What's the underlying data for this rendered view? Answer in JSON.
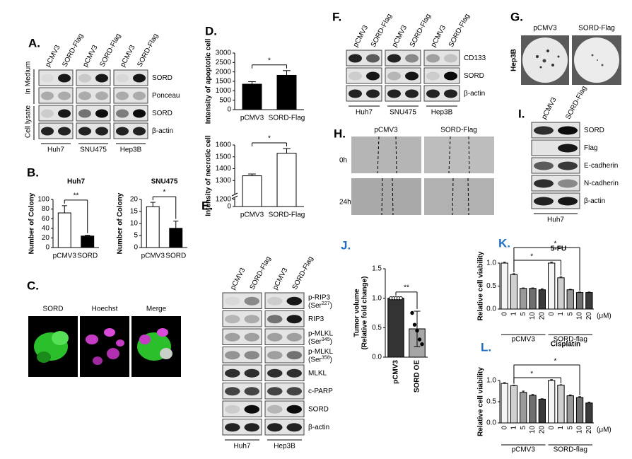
{
  "panel_labels": [
    "A.",
    "B.",
    "C.",
    "D.",
    "E.",
    "F.",
    "G.",
    "H.",
    "I.",
    "J.",
    "K.",
    "L."
  ],
  "blot_a": {
    "lanes": [
      "pCMV3",
      "SORD-Flag"
    ],
    "side_labels": [
      "In Medium",
      "Cell lysate"
    ],
    "rows": [
      "SORD",
      "Ponceau",
      "SORD",
      "β-actin"
    ],
    "cell_lines": [
      "Huh7",
      "SNU475",
      "Hep3B"
    ]
  },
  "panel_c": {
    "labels": [
      "SORD",
      "Hoechst",
      "Merge"
    ]
  },
  "blot_e": {
    "lanes": [
      "pCMV3",
      "SORD-Flag"
    ],
    "rows": [
      {
        "name": "p-RIP3",
        "site": [
          "(Ser",
          "227",
          ")"
        ]
      },
      {
        "name": "RIP3"
      },
      {
        "name": "p-MLKL",
        "site": [
          "(Ser",
          "345",
          ")"
        ]
      },
      {
        "name": "p-MLKL",
        "site": [
          "(Ser",
          "358",
          ")"
        ]
      },
      {
        "name": "MLKL"
      },
      {
        "name": "c-PARP"
      },
      {
        "name": "SORD"
      },
      {
        "name": "β-actin"
      }
    ],
    "cell_lines": [
      "Huh7",
      "Hep3B"
    ]
  },
  "blot_f": {
    "lanes": [
      "pCMV3",
      "SORD-Flag"
    ],
    "rows": [
      "CD133",
      "SORD",
      "β-actin"
    ],
    "cell_lines": [
      "Huh7",
      "SNU475",
      "Hep3B"
    ]
  },
  "panel_g": {
    "side_label": "Hep3B",
    "columns": [
      "pCMV3",
      "SORD-Flag"
    ]
  },
  "panel_h": {
    "columns": [
      "pCMV3",
      "SORD-Flag"
    ],
    "rows": [
      "0h",
      "24h"
    ]
  },
  "blot_i": {
    "lanes": [
      "pCMV3",
      "SORD-Flag"
    ],
    "rows": [
      "SORD",
      "Flag",
      "E-cadherin",
      "N-cadherin",
      "β-actin"
    ],
    "cell_line": "Huh7"
  },
  "chart_data": [
    {
      "type": "bar",
      "title": "Huh7",
      "y_label": "Number of Colony",
      "categories": [
        "pCMV3",
        "SORD"
      ],
      "values": [
        72,
        24
      ],
      "errors": [
        15,
        1.5
      ],
      "colors": [
        "#ffffff",
        "#000000"
      ],
      "ylim": [
        0,
        100
      ],
      "yticks": [
        0,
        20,
        40,
        60,
        80,
        100
      ],
      "significance": "**"
    },
    {
      "type": "bar",
      "title": "SNU475",
      "y_label": "Number of Colony",
      "categories": [
        "pCMV3",
        "SORD"
      ],
      "values": [
        17,
        8
      ],
      "errors": [
        1.8,
        3
      ],
      "colors": [
        "#ffffff",
        "#000000"
      ],
      "ylim": [
        0,
        20
      ],
      "yticks": [
        0,
        5,
        10,
        15,
        20
      ],
      "significance": "*"
    },
    {
      "type": "bar",
      "y_label": "Intensity of apoptotic cell",
      "categories": [
        "pCMV3",
        "SORD-Flag"
      ],
      "values": [
        1350,
        1820
      ],
      "errors": [
        130,
        250
      ],
      "colors": [
        "#000000",
        "#000000"
      ],
      "ylim": [
        0,
        3000
      ],
      "yticks": [
        0,
        500,
        1000,
        1500,
        2000,
        2500,
        3000
      ],
      "significance": "*"
    },
    {
      "type": "bar",
      "y_label": "Intensity of necrotic cell",
      "categories": [
        "pCMV3",
        "SORD-Flag"
      ],
      "values": [
        1340,
        1530
      ],
      "errors": [
        15,
        40
      ],
      "colors": [
        "#ffffff",
        "#ffffff"
      ],
      "ylim": [
        0,
        1600
      ],
      "y_break": [
        0,
        1200
      ],
      "yticks": [
        0,
        1200,
        1300,
        1400,
        1500,
        1600
      ],
      "significance": "*"
    },
    {
      "type": "bar",
      "y_label": [
        "Tumor volume",
        "(Relative fold change)"
      ],
      "categories": [
        "pCMV3",
        "SORD OE"
      ],
      "values": [
        1.0,
        0.48
      ],
      "errors": [
        0.01,
        0.3
      ],
      "colors": [
        "#333333",
        "#a6a6a6"
      ],
      "points": [
        [
          1,
          1,
          1,
          1,
          1
        ],
        [
          0.75,
          0.55,
          0.45,
          0.3,
          0.22
        ]
      ],
      "ylim": [
        0,
        1.5
      ],
      "yticks": [
        {
          "value": 0,
          "label": "0.0"
        },
        0.5,
        {
          "value": 1,
          "label": "1.0"
        },
        1.5
      ],
      "significance": "**"
    },
    {
      "type": "bar",
      "title": "5-FU",
      "y_label": "Relative cell viability",
      "categories": [
        "0",
        "1",
        "5",
        "10",
        "20",
        "0",
        "1",
        "5",
        "10",
        "20"
      ],
      "values": [
        1.0,
        0.75,
        0.45,
        0.45,
        0.42,
        1.0,
        0.68,
        0.42,
        0.36,
        0.36
      ],
      "errors": [
        0.02,
        0.02,
        0.01,
        0.01,
        0.02,
        0.02,
        0.02,
        0.01,
        0.01,
        0.01
      ],
      "colors": [
        "#f5f5f5",
        "#d0d0d0",
        "#9a9a9a",
        "#6e6e6e",
        "#3a3a3a",
        "#f5f5f5",
        "#d0d0d0",
        "#9a9a9a",
        "#6e6e6e",
        "#3a3a3a"
      ],
      "groups": [
        "pCMV3",
        "SORD-flag"
      ],
      "unit": "(μM)",
      "annotations": [
        "*",
        "*"
      ],
      "ylim": [
        0,
        1.0
      ],
      "yticks": [
        {
          "value": 0,
          "label": "0.0"
        },
        0.5,
        {
          "value": 1,
          "label": "1.0"
        }
      ]
    },
    {
      "type": "bar",
      "title": "Cisplatin",
      "y_label": "Relative cell viability",
      "categories": [
        "0",
        "1",
        "5",
        "10",
        "20",
        "0",
        "1",
        "5",
        "10",
        "20"
      ],
      "values": [
        0.93,
        0.88,
        0.72,
        0.65,
        0.56,
        1.0,
        0.89,
        0.64,
        0.6,
        0.47
      ],
      "errors": [
        0.02,
        0.01,
        0.03,
        0.02,
        0.01,
        0.02,
        0.01,
        0.02,
        0.02,
        0.02
      ],
      "colors": [
        "#f5f5f5",
        "#d0d0d0",
        "#9a9a9a",
        "#6e6e6e",
        "#3a3a3a",
        "#f5f5f5",
        "#d0d0d0",
        "#9a9a9a",
        "#6e6e6e",
        "#3a3a3a"
      ],
      "groups": [
        "pCMV3",
        "SORD-flag"
      ],
      "unit": "(μM)",
      "annotations": [
        "*",
        "*"
      ],
      "ylim": [
        0,
        1.0
      ],
      "yticks": [
        {
          "value": 0,
          "label": "0.0"
        },
        0.5,
        {
          "value": 1,
          "label": "1.0"
        }
      ]
    }
  ]
}
